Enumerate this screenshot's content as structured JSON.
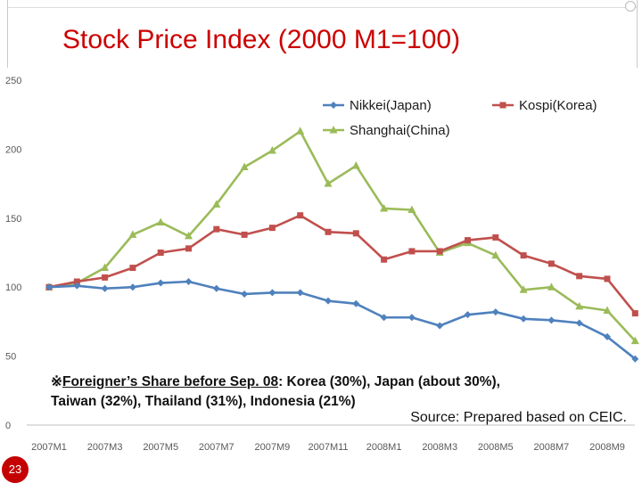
{
  "slide": {
    "title": "Stock Price Index (2000 M1=100)",
    "note_symbol": "※",
    "note_lead": "Foreigner’s Share before Sep. 08",
    "note_rest": ": Korea (30%), Japan (about 30%),",
    "note_line2": "Taiwan (32%), Thailand (31%), Indonesia (21%)",
    "source": "Source: Prepared based on CEIC.",
    "page_number": "23"
  },
  "chart_data": {
    "type": "line",
    "title": "Stock Price Index (2000 M1=100)",
    "xlabel": "",
    "ylabel": "",
    "ylim": [
      0,
      250
    ],
    "yticks": [
      0,
      50,
      100,
      150,
      200,
      250
    ],
    "x": [
      "2007M1",
      "2007M2",
      "2007M3",
      "2007M4",
      "2007M5",
      "2007M6",
      "2007M7",
      "2007M8",
      "2007M9",
      "2007M10",
      "2007M11",
      "2007M12",
      "2008M1",
      "2008M2",
      "2008M3",
      "2008M4",
      "2008M5",
      "2008M6",
      "2008M7",
      "2008M8",
      "2008M9",
      "2008M10"
    ],
    "xtick_labels": [
      "2007M1",
      "2007M3",
      "2007M5",
      "2007M7",
      "2007M9",
      "2007M11",
      "2008M1",
      "2008M3",
      "2008M5",
      "2008M7",
      "2008M9"
    ],
    "grid": false,
    "legend_position": "top-right",
    "series": [
      {
        "name": "Nikkei(Japan)",
        "color": "#4f81bd",
        "marker": "diamond",
        "values": [
          100,
          101,
          99,
          100,
          103,
          104,
          99,
          95,
          96,
          96,
          90,
          88,
          78,
          78,
          72,
          80,
          82,
          77,
          76,
          74,
          64,
          48
        ]
      },
      {
        "name": "Kospi(Korea)",
        "color": "#c0504d",
        "marker": "square",
        "values": [
          100,
          104,
          107,
          114,
          125,
          128,
          142,
          138,
          143,
          152,
          140,
          139,
          120,
          126,
          126,
          134,
          136,
          123,
          117,
          108,
          106,
          81
        ]
      },
      {
        "name": "Shanghai(China)",
        "color": "#9bbb59",
        "marker": "triangle",
        "values": [
          100,
          103,
          114,
          138,
          147,
          137,
          160,
          187,
          199,
          213,
          175,
          188,
          157,
          156,
          125,
          132,
          123,
          98,
          100,
          86,
          83,
          61
        ]
      }
    ]
  }
}
